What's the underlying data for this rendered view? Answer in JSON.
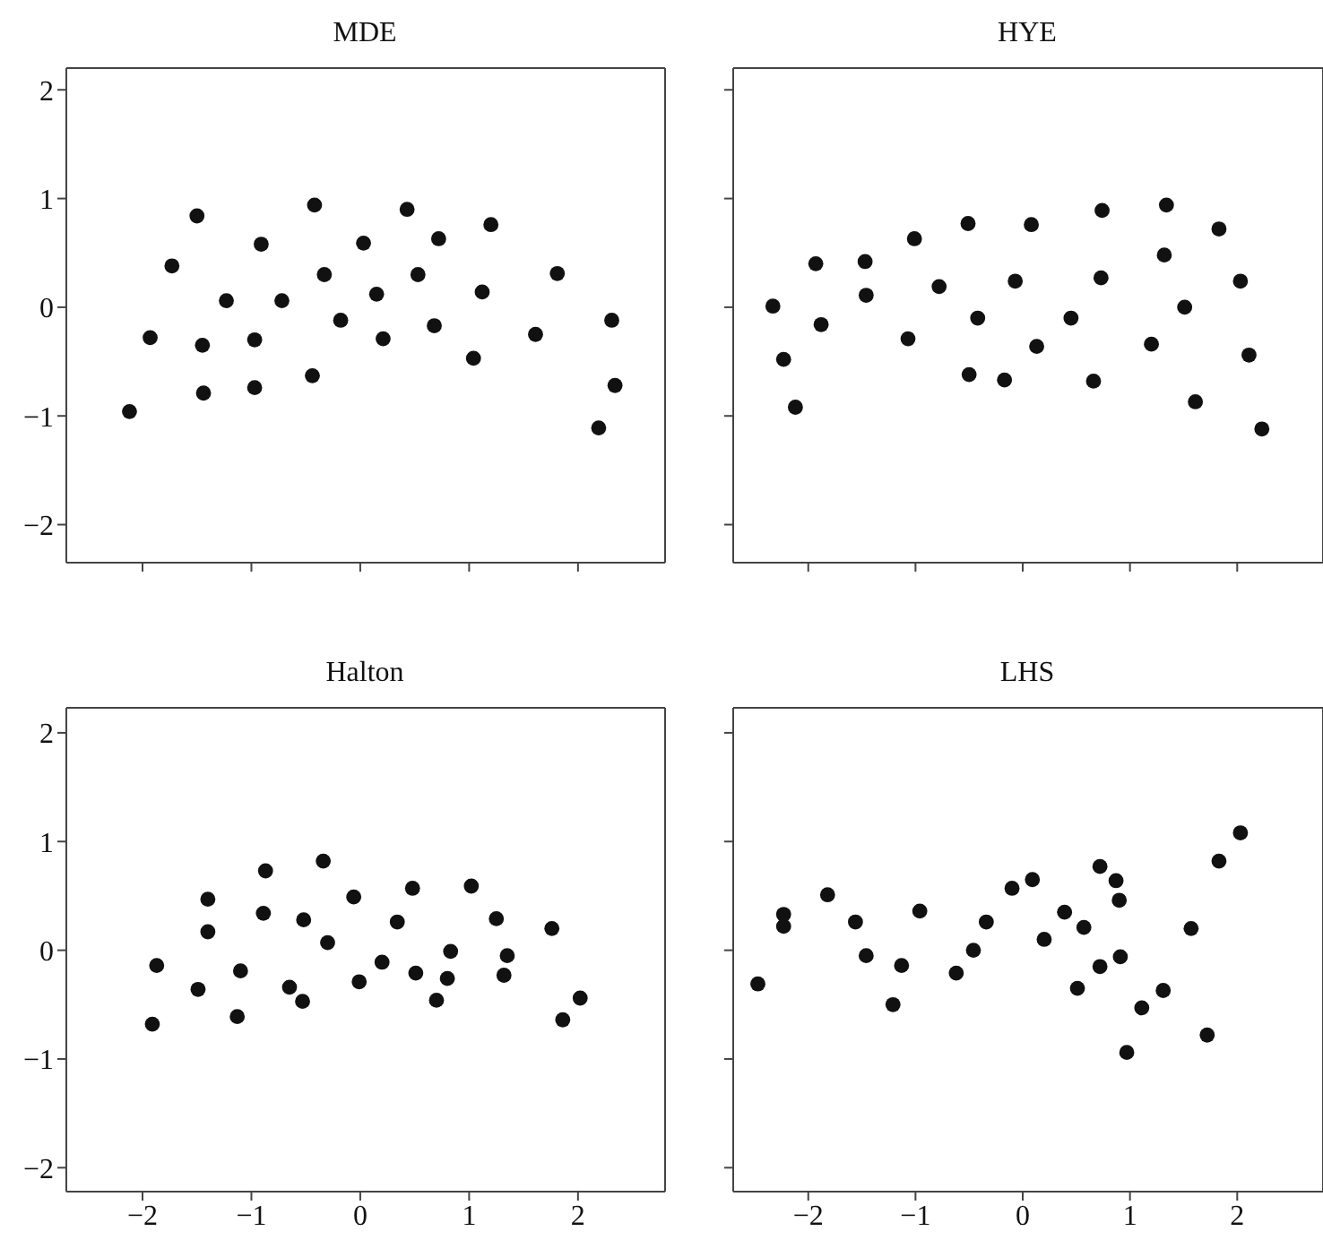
{
  "chart_data": [
    {
      "type": "scatter",
      "title": "MDE",
      "color": "#111111",
      "marker": "circle",
      "xlim": [
        -2.7,
        2.8
      ],
      "xticks": [
        -2,
        -1,
        0,
        1,
        2
      ],
      "ylim": [
        -2.35,
        2.2
      ],
      "yticks": [
        -2,
        -1,
        0,
        1,
        2
      ],
      "tick_labels": "y",
      "x": [
        -2.12,
        -1.93,
        -1.73,
        -1.5,
        -1.45,
        -1.44,
        -1.23,
        -0.97,
        -0.97,
        -0.91,
        -0.72,
        -0.44,
        -0.42,
        -0.33,
        -0.18,
        0.03,
        0.15,
        0.21,
        0.43,
        0.53,
        0.68,
        0.72,
        1.04,
        1.12,
        1.2,
        1.61,
        1.81,
        2.19,
        2.31,
        2.34
      ],
      "values": [
        -0.96,
        -0.28,
        0.38,
        0.84,
        -0.35,
        -0.79,
        0.06,
        -0.3,
        -0.74,
        0.58,
        0.06,
        -0.63,
        0.94,
        0.3,
        -0.12,
        0.59,
        0.12,
        -0.29,
        0.9,
        0.3,
        -0.17,
        0.63,
        -0.47,
        0.14,
        0.76,
        -0.25,
        0.31,
        -1.11,
        -0.12,
        -0.72
      ]
    },
    {
      "type": "scatter",
      "title": "HYE",
      "color": "#111111",
      "marker": "circle",
      "xlim": [
        -2.7,
        2.8
      ],
      "xticks": [
        -2,
        -1,
        0,
        1,
        2
      ],
      "ylim": [
        -2.35,
        2.2
      ],
      "yticks": [
        -2,
        -1,
        0,
        1,
        2
      ],
      "tick_labels": false,
      "x": [
        -2.33,
        -2.23,
        -2.12,
        -1.93,
        -1.88,
        -1.47,
        -1.46,
        -1.07,
        -1.01,
        -0.78,
        -0.51,
        -0.5,
        -0.42,
        -0.17,
        -0.07,
        0.08,
        0.13,
        0.45,
        0.66,
        0.73,
        0.74,
        1.2,
        1.32,
        1.34,
        1.51,
        1.61,
        1.83,
        2.03,
        2.11,
        2.23
      ],
      "values": [
        0.01,
        -0.48,
        -0.92,
        0.4,
        -0.16,
        0.42,
        0.11,
        -0.29,
        0.63,
        0.19,
        0.77,
        -0.62,
        -0.1,
        -0.67,
        0.24,
        0.76,
        -0.36,
        -0.1,
        -0.68,
        0.27,
        0.89,
        -0.34,
        0.48,
        0.94,
        0.0,
        -0.87,
        0.72,
        0.24,
        -0.44,
        -1.12
      ]
    },
    {
      "type": "scatter",
      "title": "Halton",
      "color": "#111111",
      "marker": "circle",
      "xlim": [
        -2.7,
        2.8
      ],
      "xticks": [
        -2,
        -1,
        0,
        1,
        2
      ],
      "ylim": [
        -2.22,
        2.23
      ],
      "yticks": [
        -2,
        -1,
        0,
        1,
        2
      ],
      "x": [
        -1.91,
        -1.87,
        -1.49,
        -1.4,
        -1.4,
        -1.13,
        -1.1,
        -0.89,
        -0.87,
        -0.65,
        -0.53,
        -0.52,
        -0.34,
        -0.3,
        -0.06,
        -0.01,
        0.2,
        0.34,
        0.48,
        0.51,
        0.7,
        0.8,
        0.83,
        1.02,
        1.25,
        1.32,
        1.35,
        1.76,
        1.86,
        2.02
      ],
      "values": [
        -0.68,
        -0.14,
        -0.36,
        0.47,
        0.17,
        -0.61,
        -0.19,
        0.34,
        0.73,
        -0.34,
        -0.47,
        0.28,
        0.82,
        0.07,
        0.49,
        -0.29,
        -0.11,
        0.26,
        0.57,
        -0.21,
        -0.46,
        -0.26,
        -0.01,
        0.59,
        0.29,
        -0.23,
        -0.05,
        0.2,
        -0.64,
        -0.44
      ]
    },
    {
      "type": "scatter",
      "title": "LHS",
      "color": "#111111",
      "marker": "circle",
      "xlim": [
        -2.7,
        2.8
      ],
      "xticks": [
        -2,
        -1,
        0,
        1,
        2
      ],
      "ylim": [
        -2.22,
        2.23
      ],
      "yticks": [
        -2,
        -1,
        0,
        1,
        2
      ],
      "tick_labels": "x",
      "x": [
        -2.47,
        -2.23,
        -2.23,
        -1.82,
        -1.56,
        -1.46,
        -1.21,
        -1.13,
        -0.96,
        -0.62,
        -0.46,
        -0.34,
        -0.1,
        0.09,
        0.2,
        0.39,
        0.51,
        0.57,
        0.72,
        0.72,
        0.87,
        0.9,
        0.91,
        0.97,
        1.11,
        1.31,
        1.57,
        1.72,
        1.83,
        2.03
      ],
      "values": [
        -0.31,
        0.33,
        0.22,
        0.51,
        0.26,
        -0.05,
        -0.5,
        -0.14,
        0.36,
        -0.21,
        0.0,
        0.26,
        0.57,
        0.65,
        0.1,
        0.35,
        -0.35,
        0.21,
        0.77,
        -0.15,
        0.64,
        0.46,
        -0.06,
        -0.94,
        -0.53,
        -0.37,
        0.2,
        -0.78,
        0.82,
        1.08
      ]
    }
  ]
}
